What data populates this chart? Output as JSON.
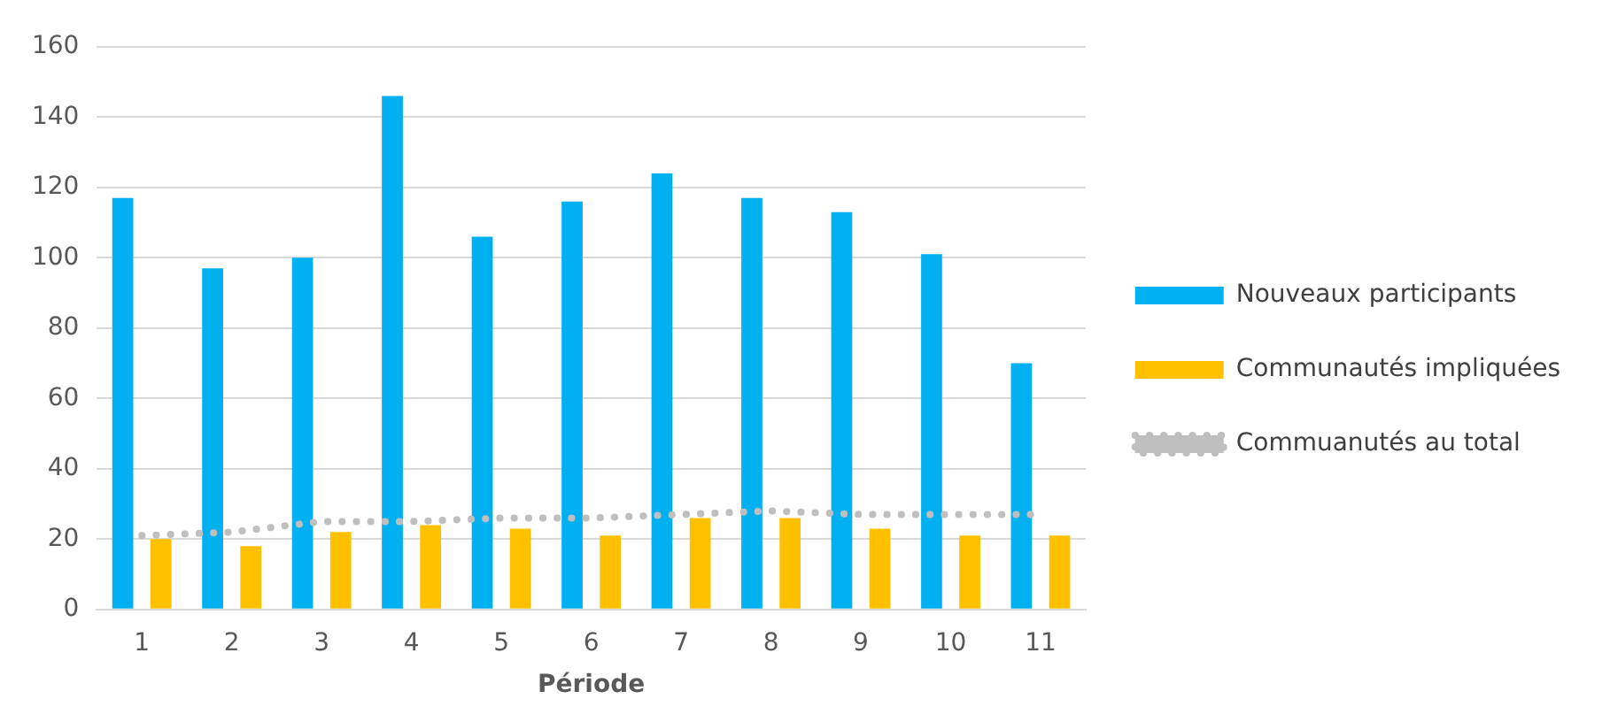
{
  "chart_data": {
    "type": "bar",
    "xlabel": "Période",
    "categories": [
      "1",
      "2",
      "3",
      "4",
      "5",
      "6",
      "7",
      "8",
      "9",
      "10",
      "11"
    ],
    "series": [
      {
        "name": "Nouveaux participants",
        "color": "#00b0f0",
        "values": [
          117,
          97,
          100,
          146,
          106,
          116,
          124,
          117,
          113,
          101,
          70
        ]
      },
      {
        "name": "Communautés impliquées",
        "color": "#ffc000",
        "values": [
          20,
          18,
          22,
          24,
          23,
          21,
          26,
          26,
          23,
          21,
          21
        ]
      },
      {
        "name": "Commuanutés au total",
        "type": "line",
        "color": "#bfbfbf",
        "line_style": "dotted",
        "marker": "none",
        "values": [
          21,
          22,
          25,
          25,
          26,
          26,
          27,
          28,
          27,
          27,
          27
        ]
      }
    ],
    "ylim": [
      0,
      160
    ],
    "yticks": [
      0,
      20,
      40,
      60,
      80,
      100,
      120,
      140,
      160
    ],
    "grid": "y",
    "legend": "right"
  }
}
